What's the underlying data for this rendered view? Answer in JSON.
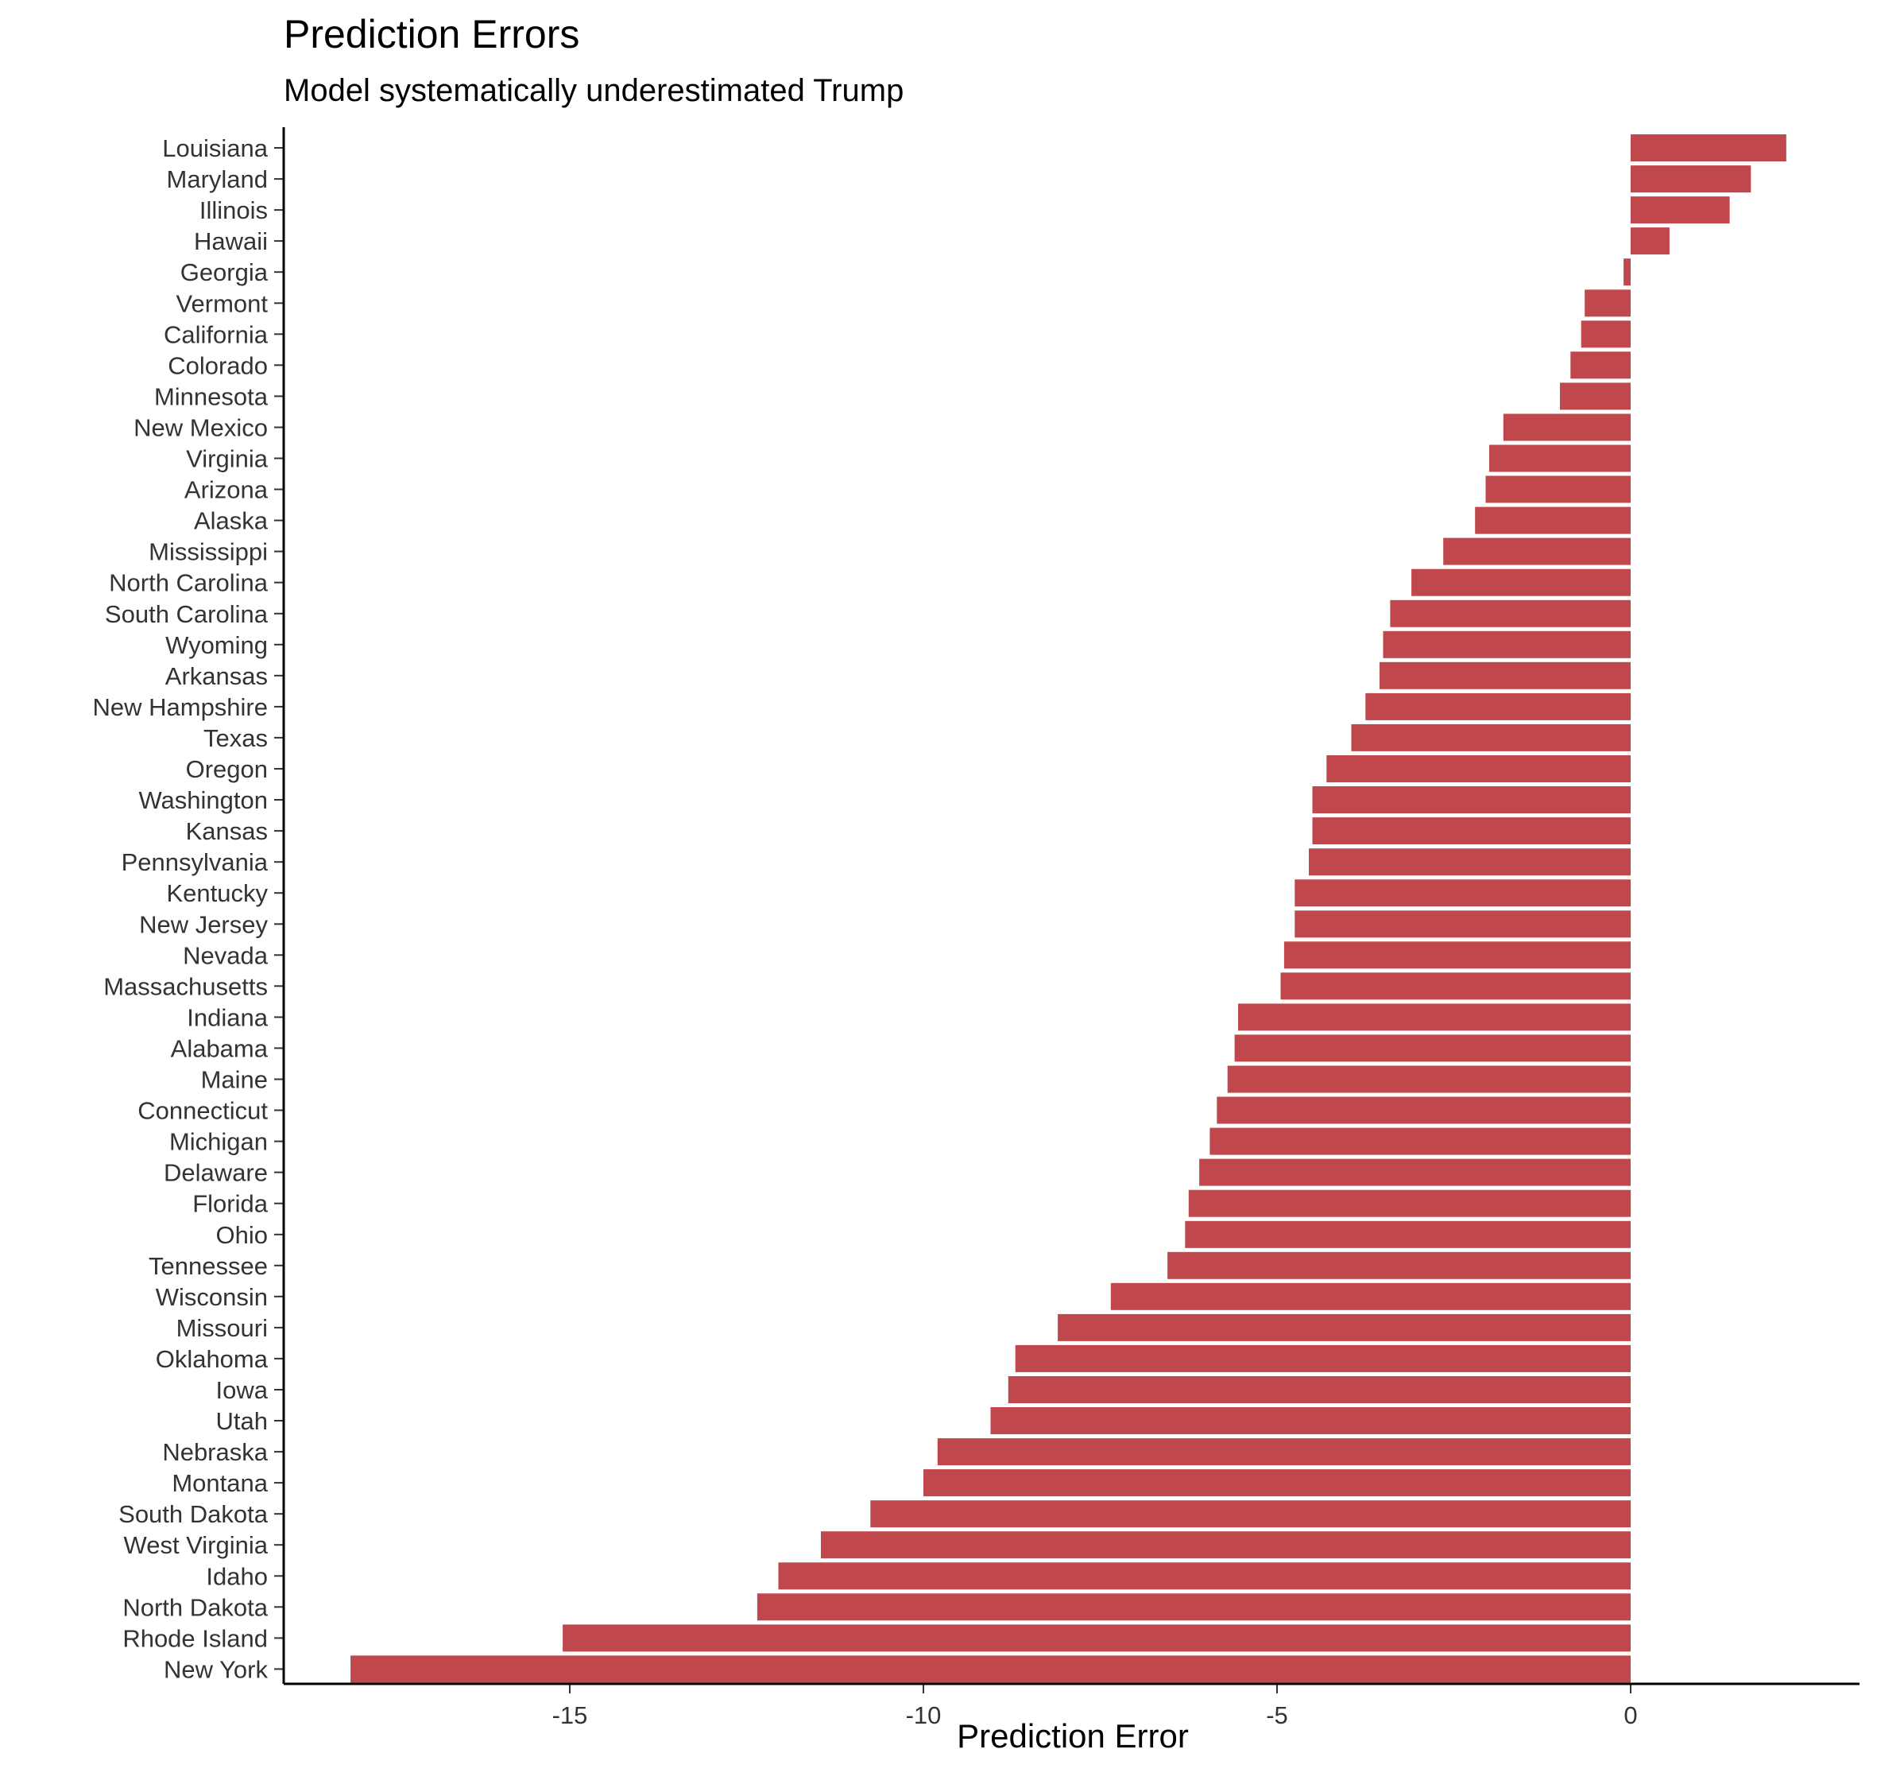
{
  "chart_data": {
    "type": "bar",
    "orientation": "horizontal",
    "title": "Prediction Errors",
    "subtitle": "Model systematically underestimated Trump",
    "xlabel": "Prediction Error",
    "ylabel": "",
    "xlim": [
      -18.8,
      2.9
    ],
    "xticks": [
      -15,
      -10,
      -5,
      0
    ],
    "xtick_labels": [
      "-15",
      "-10",
      "-5",
      "0"
    ],
    "grid": false,
    "bar_color": "#c0474b",
    "categories": [
      "Louisiana",
      "Maryland",
      "Illinois",
      "Hawaii",
      "Georgia",
      "Vermont",
      "California",
      "Colorado",
      "Minnesota",
      "New Mexico",
      "Virginia",
      "Arizona",
      "Alaska",
      "Mississippi",
      "North Carolina",
      "South Carolina",
      "Wyoming",
      "Arkansas",
      "New Hampshire",
      "Texas",
      "Oregon",
      "Washington",
      "Kansas",
      "Pennsylvania",
      "Kentucky",
      "New Jersey",
      "Nevada",
      "Massachusetts",
      "Indiana",
      "Alabama",
      "Maine",
      "Connecticut",
      "Michigan",
      "Delaware",
      "Florida",
      "Ohio",
      "Tennessee",
      "Wisconsin",
      "Missouri",
      "Oklahoma",
      "Iowa",
      "Utah",
      "Nebraska",
      "Montana",
      "South Dakota",
      "West Virginia",
      "Idaho",
      "North Dakota",
      "Rhode Island",
      "New York"
    ],
    "values": [
      2.2,
      1.7,
      1.4,
      0.55,
      -0.1,
      -0.65,
      -0.7,
      -0.85,
      -1.0,
      -1.8,
      -2.0,
      -2.05,
      -2.2,
      -2.65,
      -3.1,
      -3.4,
      -3.5,
      -3.55,
      -3.75,
      -3.95,
      -4.3,
      -4.5,
      -4.5,
      -4.55,
      -4.75,
      -4.75,
      -4.9,
      -4.95,
      -5.55,
      -5.6,
      -5.7,
      -5.85,
      -5.95,
      -6.1,
      -6.25,
      -6.3,
      -6.55,
      -7.35,
      -8.1,
      -8.7,
      -8.8,
      -9.05,
      -9.8,
      -10.0,
      -10.75,
      -11.45,
      -12.05,
      -12.35,
      -15.1,
      -18.1
    ]
  }
}
